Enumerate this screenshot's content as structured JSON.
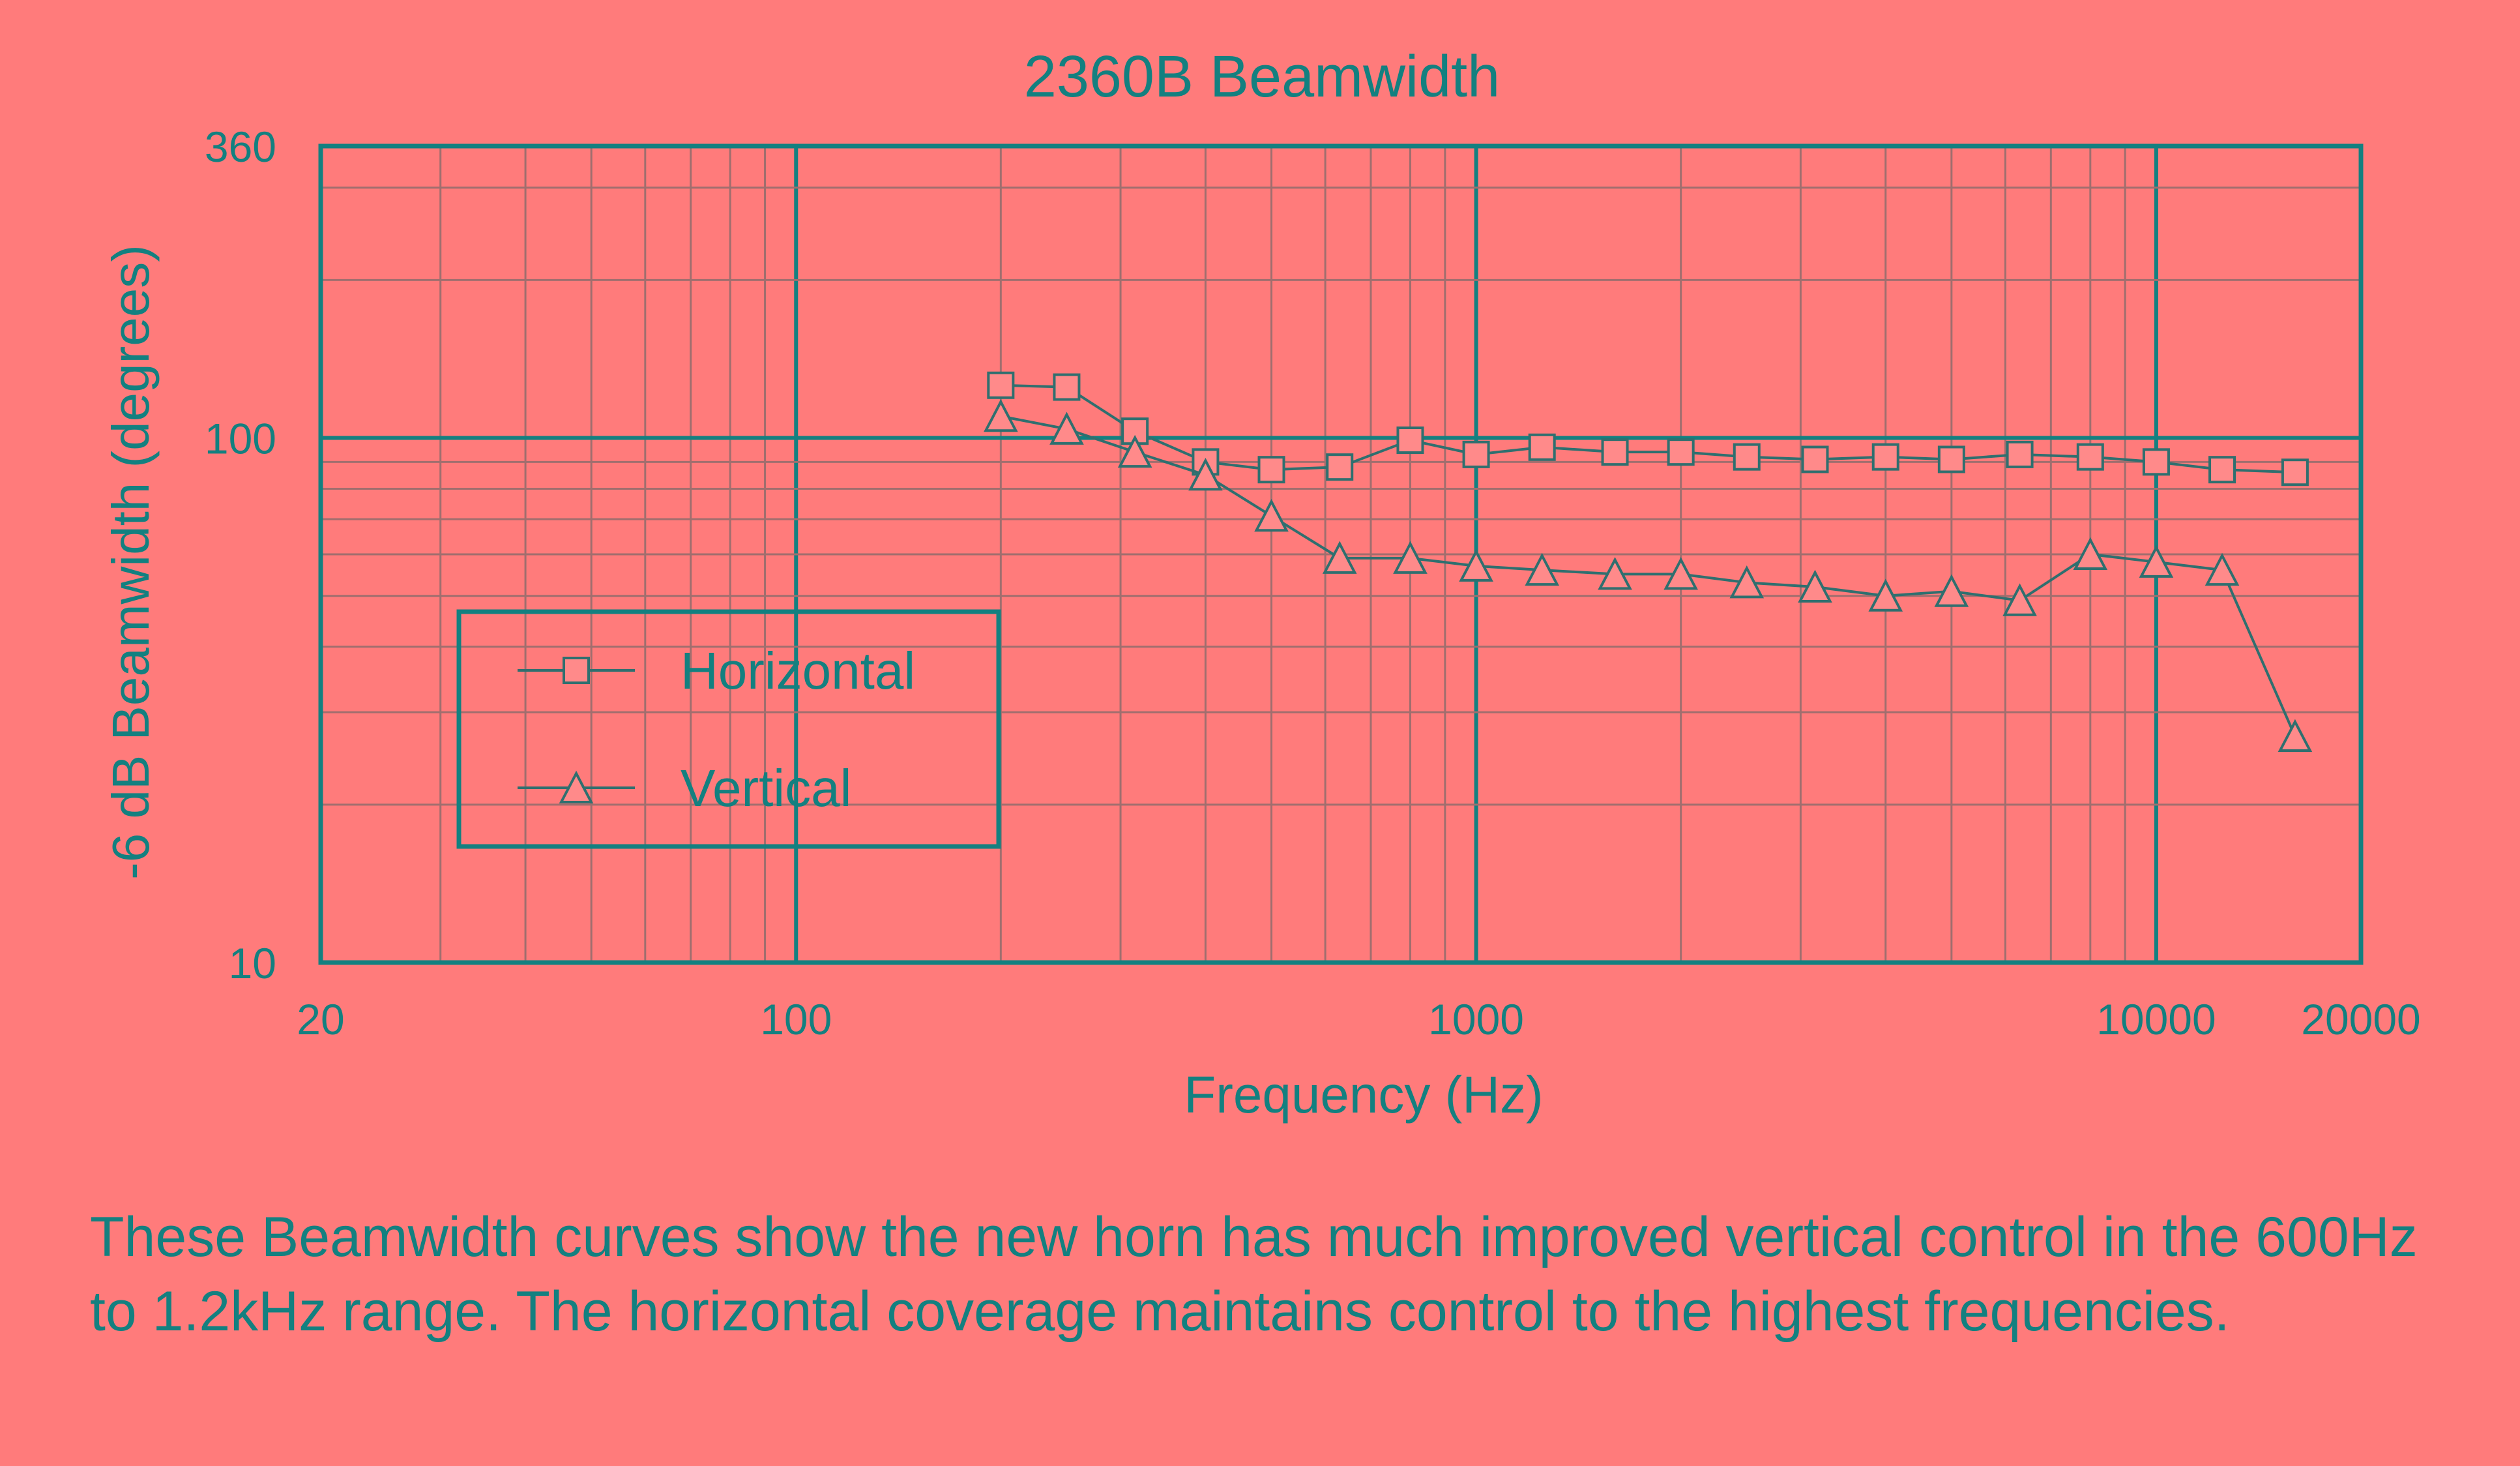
{
  "colors": {
    "background": "#ff7b7b",
    "text": "#138080",
    "axis_line": "#138080",
    "minor_grid": "#a06e6e",
    "series_line": "#2f6f6f",
    "marker_fill": "#ff8a8a"
  },
  "chart_data": {
    "type": "line",
    "title": "2360B Beamwidth",
    "xlabel": "Frequency (Hz)",
    "ylabel": "-6 dB Beamwidth (degrees)",
    "xscale": "log",
    "yscale": "log",
    "xlim": [
      20,
      20000
    ],
    "ylim": [
      10,
      360
    ],
    "x_tick_labels": [
      "20",
      "100",
      "1000",
      "10000",
      "20000"
    ],
    "y_tick_labels": [
      "360",
      "100",
      "10"
    ],
    "grid": true,
    "legend": {
      "position": "lower-left",
      "entries": [
        "Horizontal",
        "Vertical"
      ]
    },
    "series": [
      {
        "name": "Horizontal",
        "marker": "square",
        "x": [
          200,
          250,
          315,
          400,
          500,
          630,
          800,
          1000,
          1250,
          1600,
          2000,
          2500,
          3150,
          4000,
          5000,
          6300,
          8000,
          10000,
          12500,
          16000
        ],
        "y": [
          126,
          125,
          103,
          90,
          87,
          88,
          99,
          93,
          96,
          94,
          94,
          92,
          91,
          92,
          91,
          93,
          92,
          90,
          87,
          86
        ]
      },
      {
        "name": "Vertical",
        "marker": "triangle",
        "x": [
          200,
          250,
          315,
          400,
          500,
          630,
          800,
          1000,
          1250,
          1600,
          2000,
          2500,
          3150,
          4000,
          5000,
          6300,
          8000,
          10000,
          12500,
          16000
        ],
        "y": [
          110,
          104,
          94,
          85,
          71,
          59,
          59,
          57,
          56,
          55,
          55,
          53,
          52,
          50,
          51,
          49,
          60,
          58,
          56,
          27
        ]
      }
    ]
  },
  "caption": "These Beamwidth curves show the new horn has much improved vertical control in the 600Hz to 1.2kHz range.  The horizontal coverage maintains control to the highest frequencies."
}
